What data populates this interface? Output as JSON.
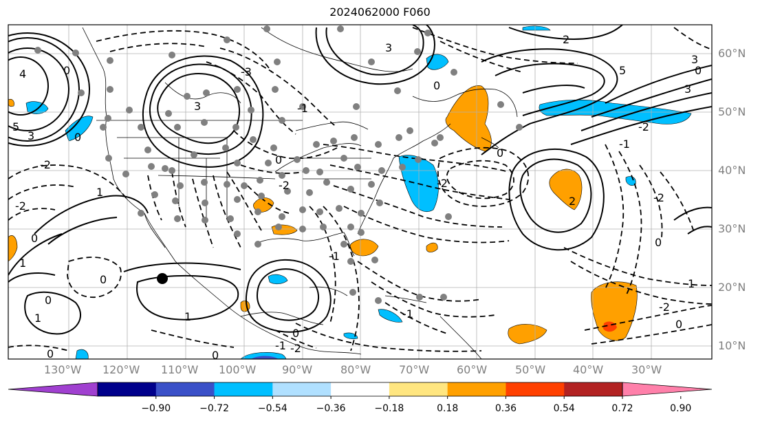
{
  "title": "2024062000 F060",
  "lon_labels": [
    "130°W",
    "120°W",
    "110°W",
    "100°W",
    "90°W",
    "80°W",
    "70°W",
    "60°W",
    "50°W",
    "40°W",
    "30°W"
  ],
  "lat_labels": [
    "60°N",
    "50°N",
    "40°N",
    "30°N",
    "20°N",
    "10°N"
  ],
  "colorbar": {
    "ticks": [
      "−0.90",
      "−0.72",
      "−0.54",
      "−0.36",
      "−0.18",
      "0.18",
      "0.36",
      "0.54",
      "0.72",
      "0.90"
    ],
    "colors": [
      "#a040d0",
      "#00008b",
      "#3a50c8",
      "#00bfff",
      "#b0e0ff",
      "#ffffff",
      "#ffe680",
      "#ffa000",
      "#ff4000",
      "#b22222",
      "#ff80aa"
    ]
  },
  "contour_labels": [
    "0",
    "1",
    "2",
    "3",
    "4",
    "5",
    "-1",
    "-2",
    "-3"
  ],
  "palette": {
    "orange": "#ffa000",
    "red": "#ff4000",
    "cyan": "#00bfff",
    "blue": "#3a50c8",
    "dots": "#808080",
    "grid": "#b0b0b0"
  }
}
